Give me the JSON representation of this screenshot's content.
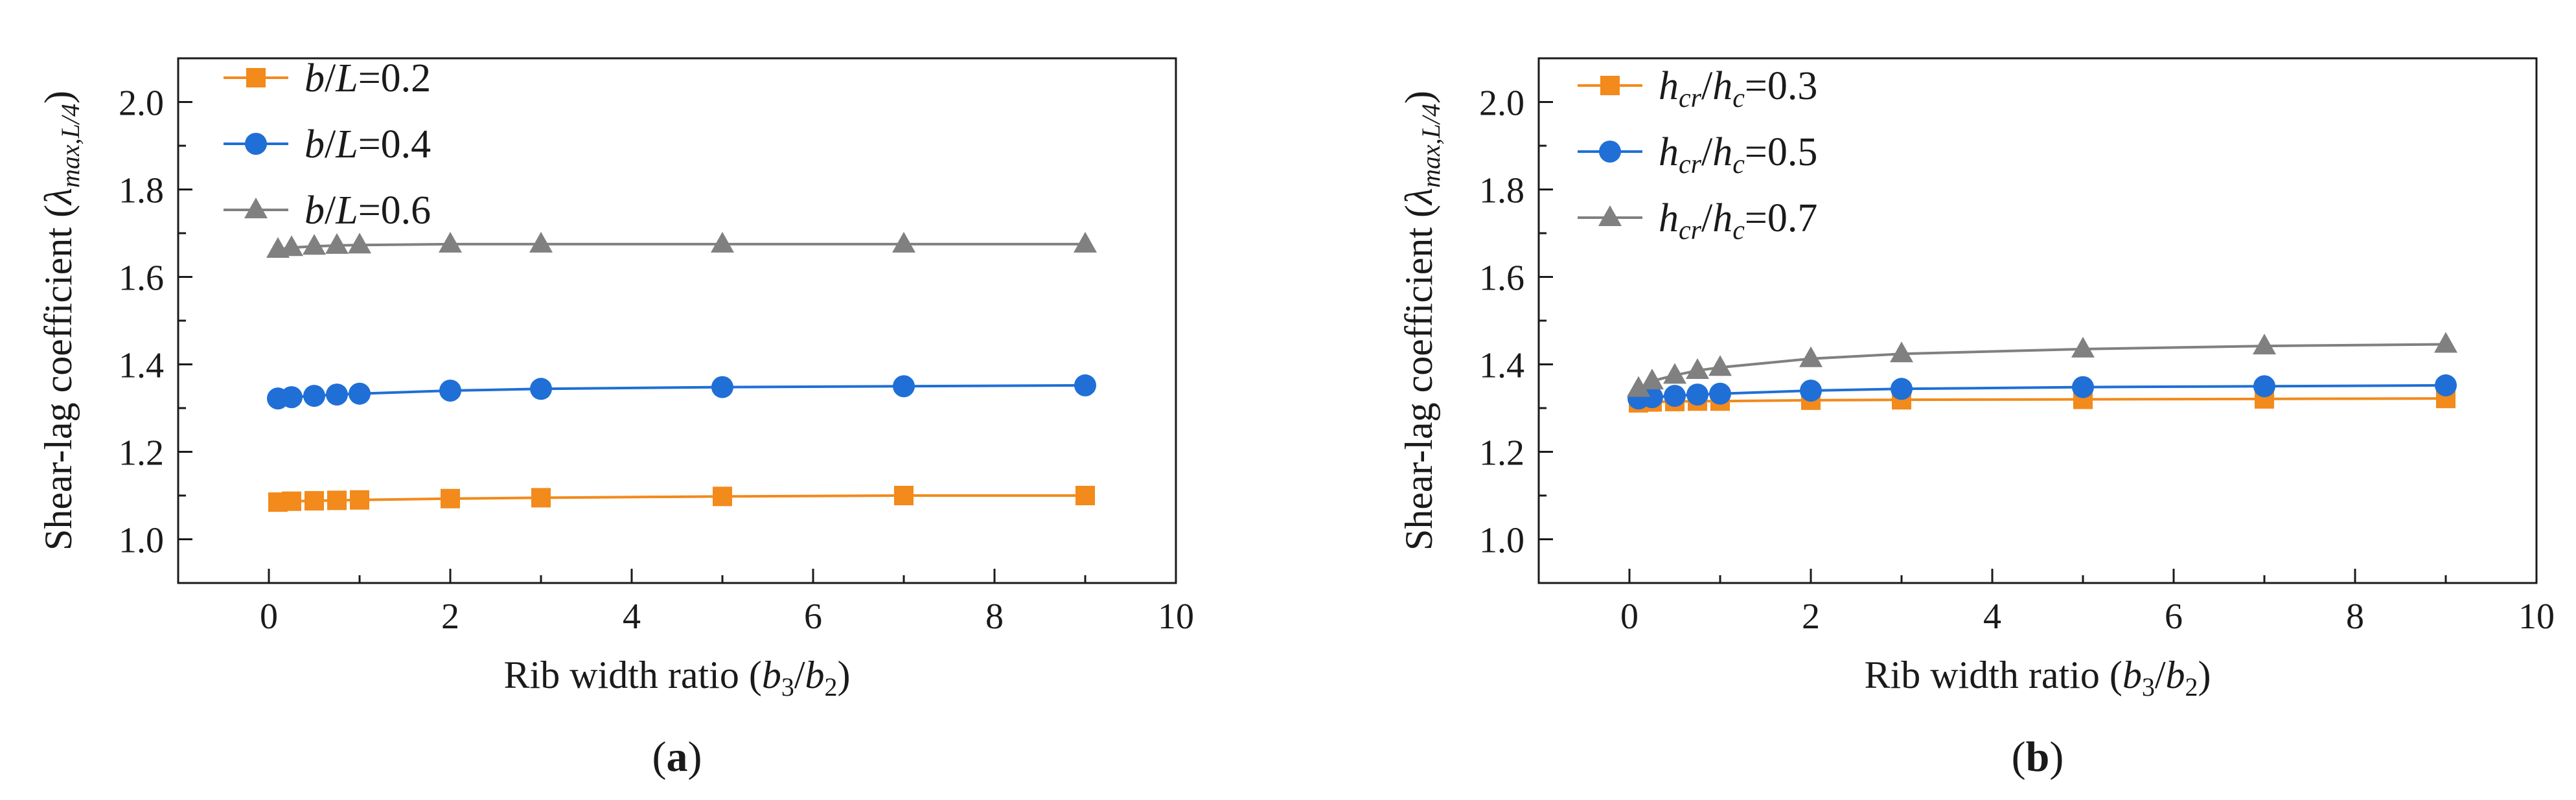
{
  "chart_data": [
    {
      "type": "line",
      "panel_label": "(a)",
      "panel_letter": "a",
      "xlabel": "Rib width ratio (b3/b2)",
      "xlabel_parts": {
        "prefix": "Rib width ratio (",
        "var1": "b",
        "sub1": "3",
        "slash": "/",
        "var2": "b",
        "sub2": "2",
        "suffix": ")"
      },
      "ylabel": "Shear-lag coefficient (λmax,L/4)",
      "ylabel_parts": {
        "prefix": "Shear-lag coefficient (",
        "symbol": "λ",
        "sub": "max,L/4",
        "suffix": ")"
      },
      "xlim": [
        -1,
        10
      ],
      "ylim": [
        0.9,
        2.1
      ],
      "xticks": [
        "0",
        "2",
        "4",
        "6",
        "8",
        "10"
      ],
      "yticks": [
        "1.0",
        "1.2",
        "1.4",
        "1.6",
        "1.8",
        "2.0"
      ],
      "legend_position": "top-left",
      "series": [
        {
          "name": "b/L=0.2",
          "var": "b",
          "den": "L",
          "value": "=0.2",
          "color": "#f28a1c",
          "marker": "square",
          "x": [
            0.1,
            0.25,
            0.5,
            0.75,
            1,
            2,
            3,
            5,
            7,
            9
          ],
          "y": [
            1.085,
            1.087,
            1.088,
            1.089,
            1.09,
            1.093,
            1.095,
            1.098,
            1.1,
            1.1
          ]
        },
        {
          "name": "b/L=0.4",
          "var": "b",
          "den": "L",
          "value": "=0.4",
          "color": "#1f6fd6",
          "marker": "circle",
          "x": [
            0.1,
            0.25,
            0.5,
            0.75,
            1,
            2,
            3,
            5,
            7,
            9
          ],
          "y": [
            1.322,
            1.325,
            1.328,
            1.331,
            1.333,
            1.34,
            1.344,
            1.348,
            1.35,
            1.352
          ]
        },
        {
          "name": "b/L=0.6",
          "var": "b",
          "den": "L",
          "value": "=0.6",
          "color": "#808080",
          "marker": "triangle",
          "x": [
            0.1,
            0.25,
            0.5,
            0.75,
            1,
            2,
            3,
            5,
            7,
            9
          ],
          "y": [
            1.663,
            1.667,
            1.67,
            1.672,
            1.673,
            1.675,
            1.675,
            1.675,
            1.675,
            1.675
          ]
        }
      ]
    },
    {
      "type": "line",
      "panel_label": "(b)",
      "panel_letter": "b",
      "xlabel": "Rib width ratio (b3/b2)",
      "xlabel_parts": {
        "prefix": "Rib width ratio (",
        "var1": "b",
        "sub1": "3",
        "slash": "/",
        "var2": "b",
        "sub2": "2",
        "suffix": ")"
      },
      "ylabel": "Shear-lag coefficient (λmax,L/4)",
      "ylabel_parts": {
        "prefix": "Shear-lag coefficient (",
        "symbol": "λ",
        "sub": "max,L/4",
        "suffix": ")"
      },
      "xlim": [
        -1,
        10
      ],
      "ylim": [
        0.9,
        2.1
      ],
      "xticks": [
        "0",
        "2",
        "4",
        "6",
        "8",
        "10"
      ],
      "yticks": [
        "1.0",
        "1.2",
        "1.4",
        "1.6",
        "1.8",
        "2.0"
      ],
      "legend_position": "top-left",
      "series": [
        {
          "name": "hcr/hc=0.3",
          "var": "h",
          "num_sub": "cr",
          "den": "h",
          "den_sub": "c",
          "value": "=0.3",
          "color": "#f28a1c",
          "marker": "square",
          "x": [
            0.1,
            0.25,
            0.5,
            0.75,
            1,
            2,
            3,
            5,
            7,
            9
          ],
          "y": [
            1.312,
            1.314,
            1.315,
            1.316,
            1.316,
            1.318,
            1.319,
            1.32,
            1.321,
            1.322
          ]
        },
        {
          "name": "hcr/hc=0.5",
          "var": "h",
          "num_sub": "cr",
          "den": "h",
          "den_sub": "c",
          "value": "=0.5",
          "color": "#1f6fd6",
          "marker": "circle",
          "x": [
            0.1,
            0.25,
            0.5,
            0.75,
            1,
            2,
            3,
            5,
            7,
            9
          ],
          "y": [
            1.322,
            1.325,
            1.328,
            1.331,
            1.333,
            1.34,
            1.344,
            1.348,
            1.35,
            1.352
          ]
        },
        {
          "name": "hcr/hc=0.7",
          "var": "h",
          "num_sub": "cr",
          "den": "h",
          "den_sub": "c",
          "value": "=0.7",
          "color": "#808080",
          "marker": "triangle",
          "x": [
            0.1,
            0.25,
            0.5,
            0.75,
            1,
            2,
            3,
            5,
            7,
            9
          ],
          "y": [
            1.345,
            1.362,
            1.375,
            1.386,
            1.393,
            1.413,
            1.424,
            1.435,
            1.442,
            1.446
          ]
        }
      ]
    }
  ]
}
